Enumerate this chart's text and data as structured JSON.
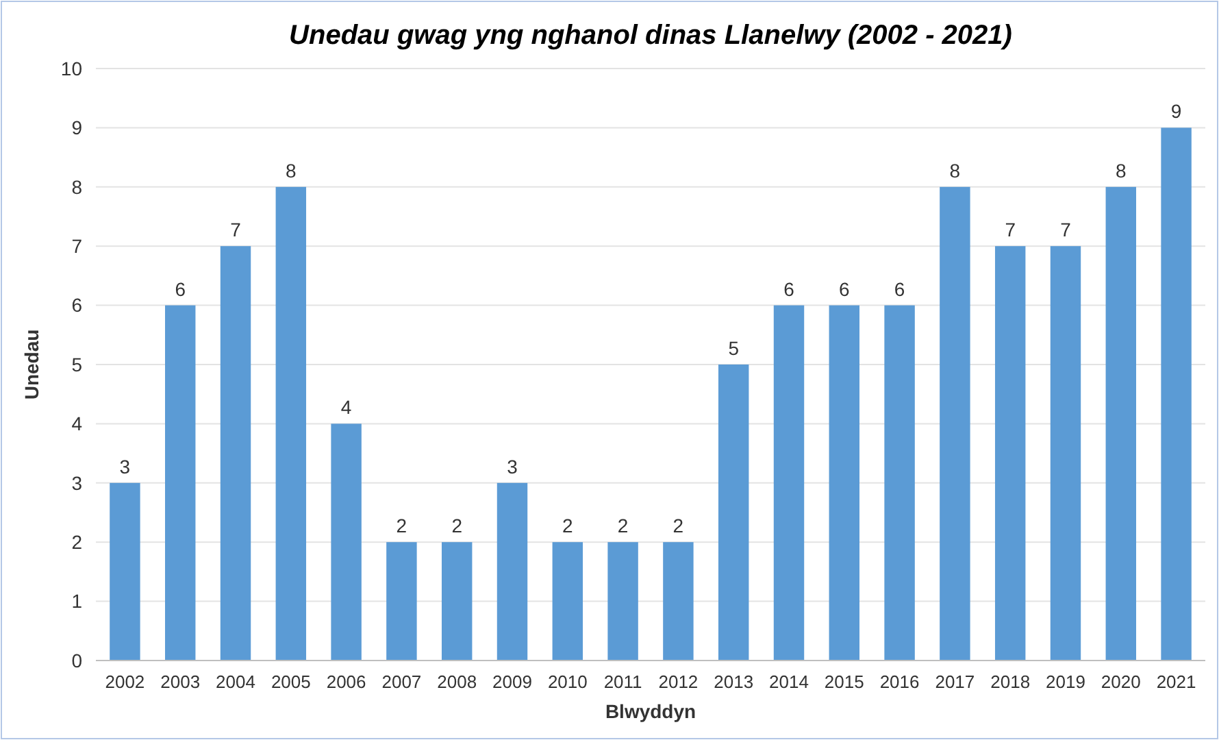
{
  "chart_data": {
    "type": "bar",
    "title": "Unedau gwag yng nghanol dinas Llanelwy (2002 - 2021)",
    "xlabel": "Blwyddyn",
    "ylabel": "Unedau",
    "categories": [
      "2002",
      "2003",
      "2004",
      "2005",
      "2006",
      "2007",
      "2008",
      "2009",
      "2010",
      "2011",
      "2012",
      "2013",
      "2014",
      "2015",
      "2016",
      "2017",
      "2018",
      "2019",
      "2020",
      "2021"
    ],
    "values": [
      3,
      6,
      7,
      8,
      4,
      2,
      2,
      3,
      2,
      2,
      2,
      5,
      6,
      6,
      6,
      8,
      7,
      7,
      8,
      9
    ],
    "color": "#5b9bd5",
    "ylim": [
      0,
      10
    ],
    "yticks": [
      0,
      1,
      2,
      3,
      4,
      5,
      6,
      7,
      8,
      9,
      10
    ],
    "grid": "y",
    "data_labels": true
  }
}
